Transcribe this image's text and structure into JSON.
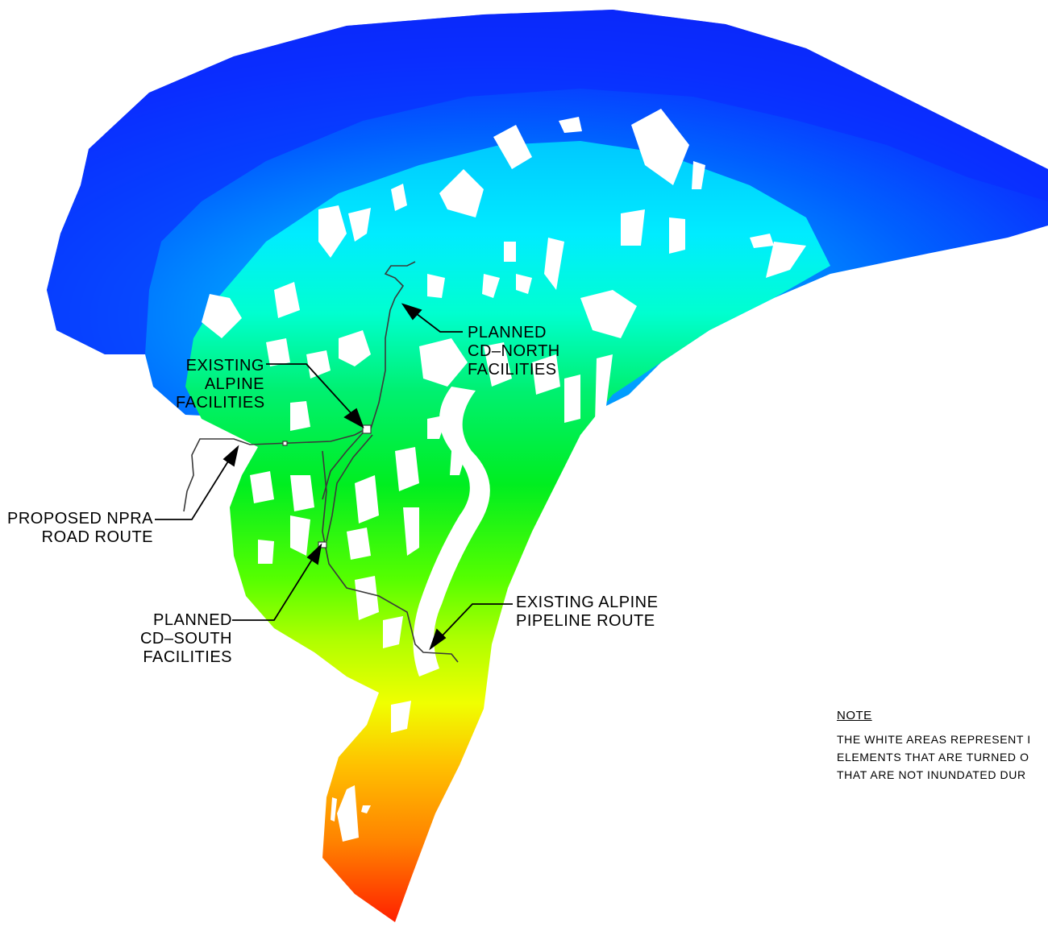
{
  "labels": {
    "cd_north": [
      "PLANNED",
      "CD–NORTH",
      "FACILITIES"
    ],
    "alpine_facilities": [
      "EXISTING",
      "ALPINE",
      "FACILITIES"
    ],
    "npra_road": [
      "PROPOSED NPRA",
      "ROAD ROUTE"
    ],
    "cd_south": [
      "PLANNED",
      "CD–SOUTH",
      "FACILITIES"
    ],
    "pipeline": [
      "EXISTING ALPINE",
      "PIPELINE ROUTE"
    ]
  },
  "note": {
    "heading": "NOTE",
    "lines": [
      "THE WHITE AREAS REPRESENT I",
      "ELEMENTS THAT ARE TURNED O",
      "THAT ARE NOT INUNDATED DUR"
    ]
  },
  "colors": {
    "deep_blue": "#0a2cff",
    "blue": "#0057ff",
    "sky": "#00a6ff",
    "cyan": "#00f0ff",
    "aqua": "#00ffc8",
    "green": "#00f23a",
    "lime": "#66ff00",
    "yellow_green": "#b8ff00",
    "yellow": "#ffff00",
    "amber": "#ffc400",
    "orange": "#ff8c00",
    "red": "#ff2a00"
  }
}
